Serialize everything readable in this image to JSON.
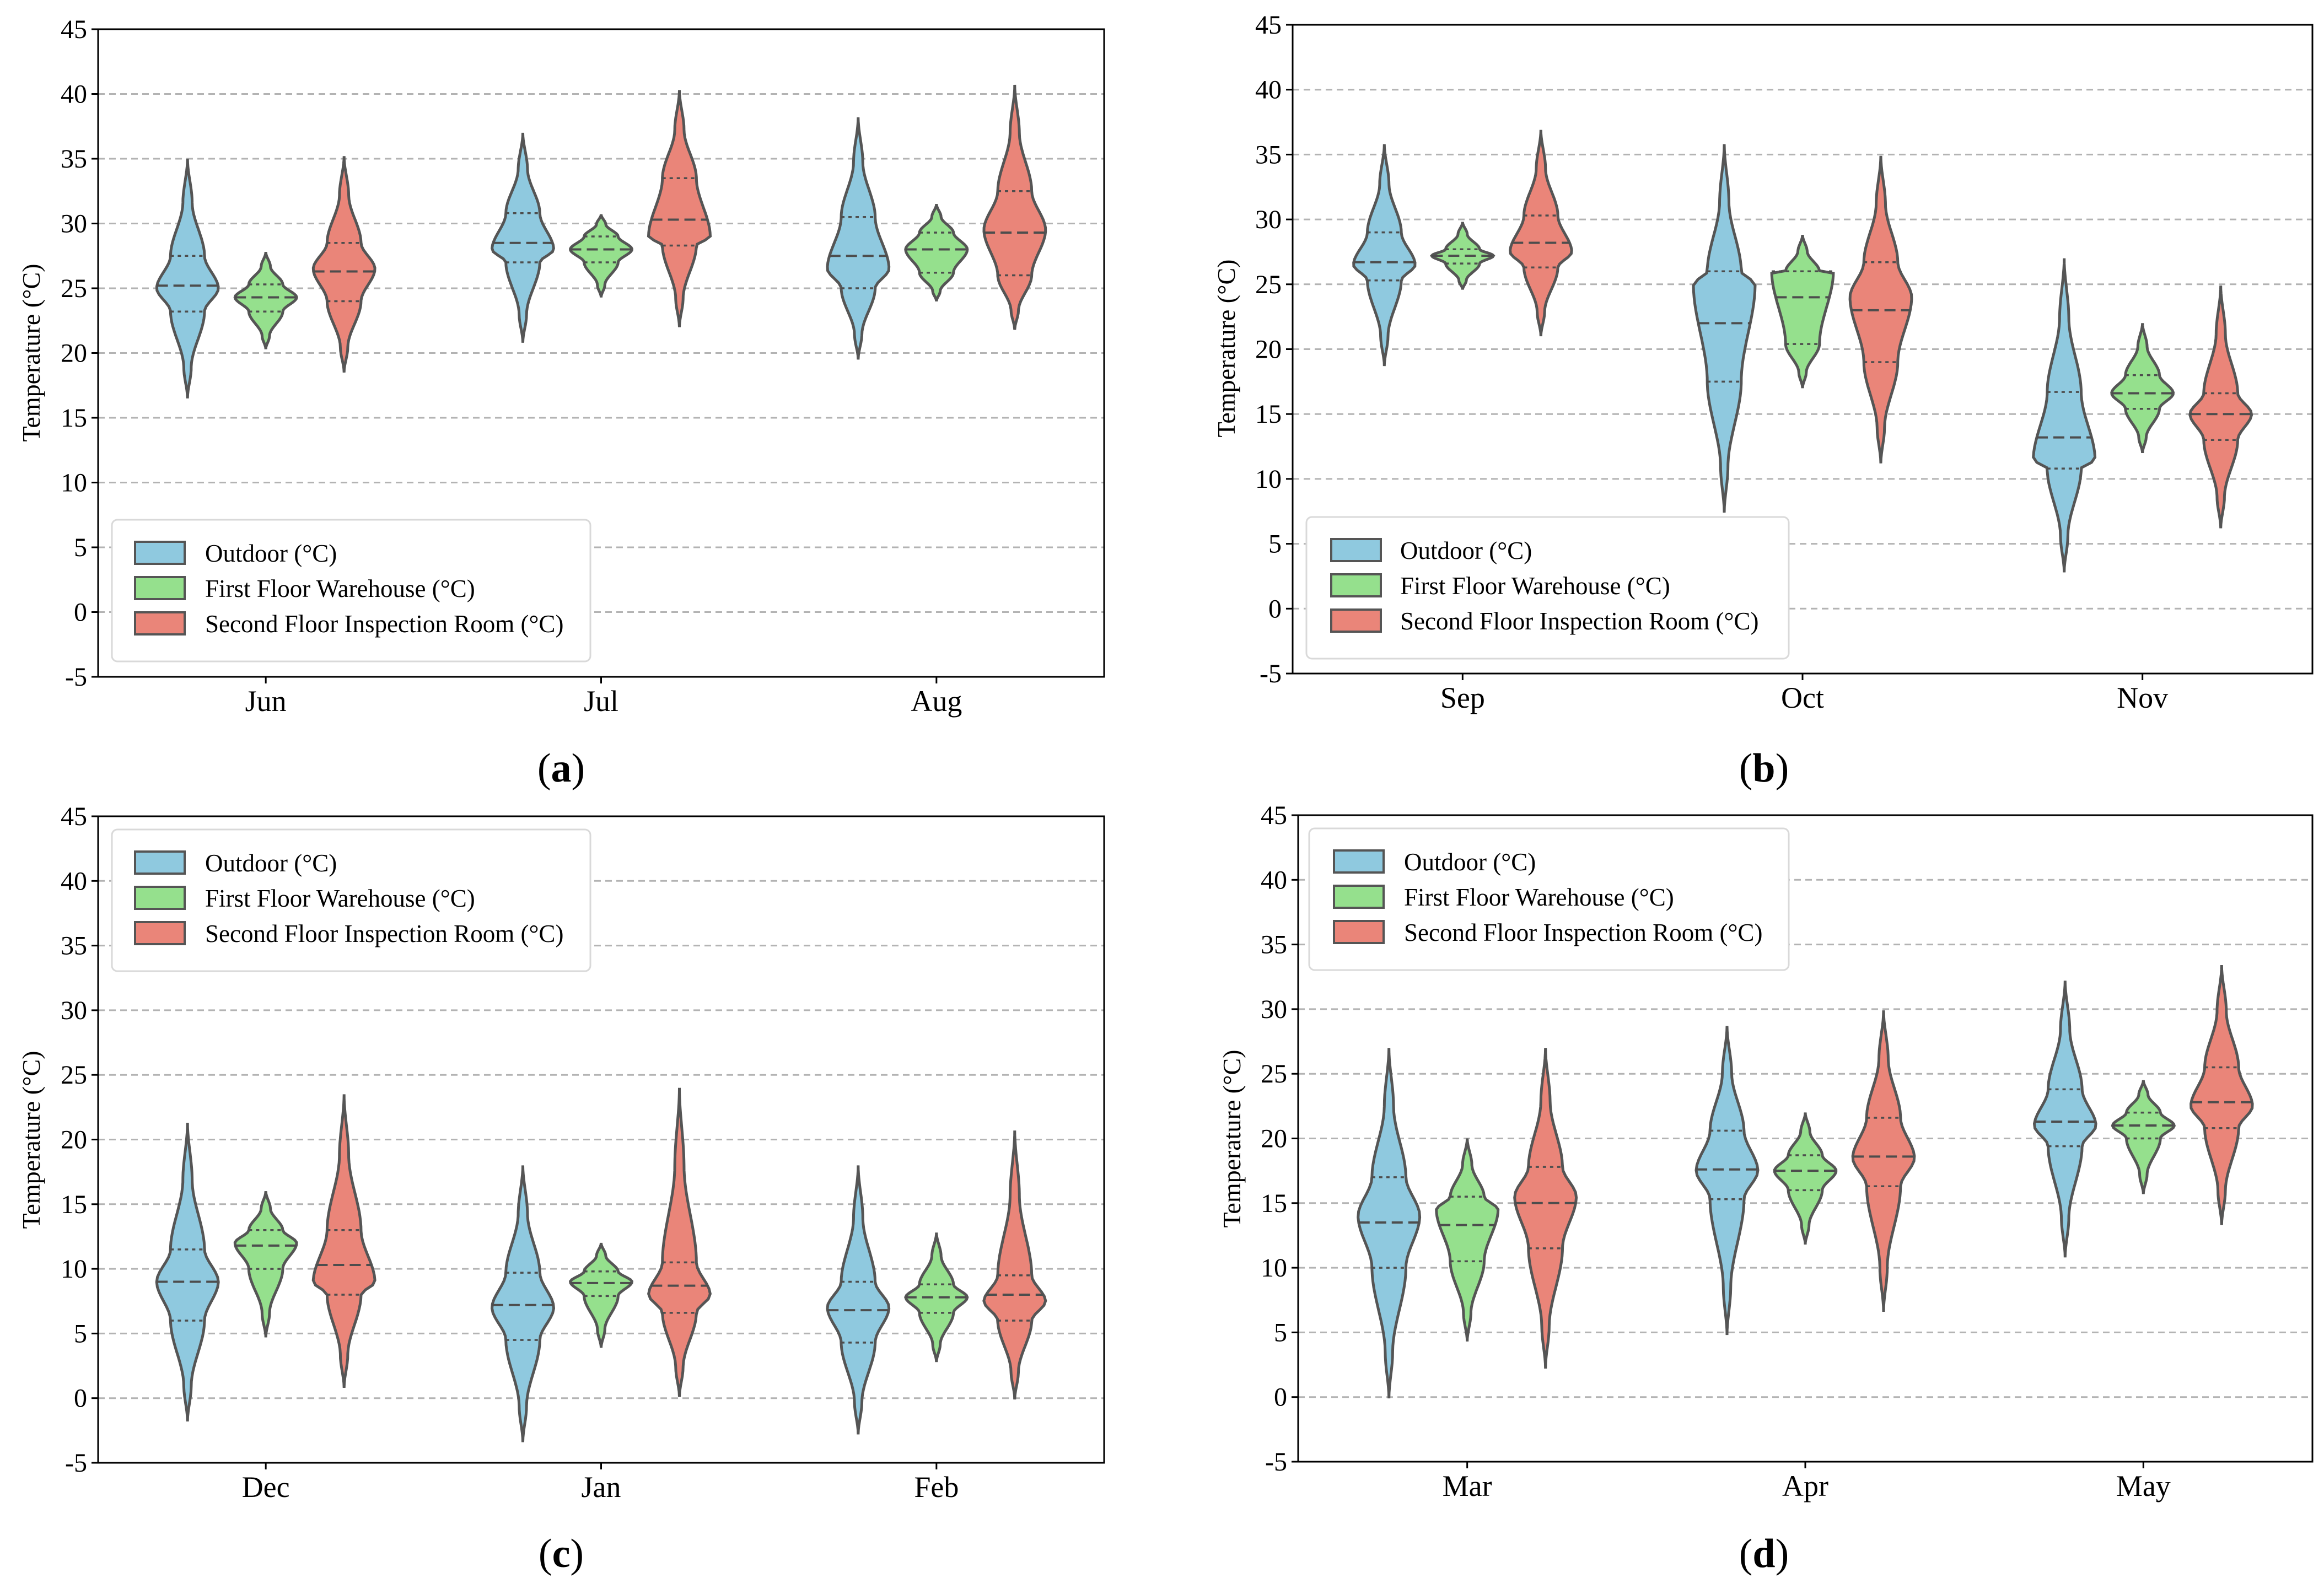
{
  "colors": {
    "outdoor": "#8fc9df",
    "first_floor": "#95e08d",
    "second_floor": "#ea8579",
    "violin_edge": "#555555",
    "grid": "#b3b3b3"
  },
  "chart_data": [
    {
      "type": "violin",
      "panel_label": "(a)",
      "panel_letter": "a",
      "ylabel": "Temperature (°C)",
      "ylim": [
        -5,
        45
      ],
      "yticks": [
        "-5",
        "0",
        "5",
        "10",
        "15",
        "20",
        "25",
        "30",
        "35",
        "40",
        "45"
      ],
      "grid": "horizontal dashed",
      "legend_loc": "lower left",
      "legend": [
        "Outdoor (°C)",
        "First Floor Warehouse (°C)",
        "Second Floor Inspection Room (°C)"
      ],
      "categories": [
        "Jun",
        "Jul",
        "Aug"
      ],
      "series": [
        {
          "name": "Outdoor (°C)",
          "values": [
            {
              "min": 16.5,
              "q1": 23.2,
              "median": 25.2,
              "q3": 27.5,
              "max": 35.0,
              "mode": 25.0
            },
            {
              "min": 20.8,
              "q1": 27.0,
              "median": 28.5,
              "q3": 30.8,
              "max": 37.0,
              "mode": 28.0
            },
            {
              "min": 19.5,
              "q1": 25.0,
              "median": 27.5,
              "q3": 30.5,
              "max": 38.2,
              "mode": 26.5
            }
          ]
        },
        {
          "name": "First Floor Warehouse (°C)",
          "values": [
            {
              "min": 20.3,
              "q1": 23.2,
              "median": 24.3,
              "q3": 25.3,
              "max": 27.8,
              "mode": 24.3
            },
            {
              "min": 24.3,
              "q1": 27.0,
              "median": 28.0,
              "q3": 29.0,
              "max": 30.7,
              "mode": 28.0
            },
            {
              "min": 24.0,
              "q1": 26.2,
              "median": 28.0,
              "q3": 29.3,
              "max": 31.5,
              "mode": 28.0
            }
          ]
        },
        {
          "name": "Second Floor Inspection Room (°C)",
          "values": [
            {
              "min": 18.5,
              "q1": 24.0,
              "median": 26.3,
              "q3": 28.5,
              "max": 35.2,
              "mode": 26.5
            },
            {
              "min": 22.0,
              "q1": 28.3,
              "median": 30.3,
              "q3": 33.5,
              "max": 40.3,
              "mode": 29.0
            },
            {
              "min": 21.8,
              "q1": 26.0,
              "median": 29.3,
              "q3": 32.5,
              "max": 40.7,
              "mode": 29.5
            }
          ]
        }
      ]
    },
    {
      "type": "violin",
      "panel_label": "(b)",
      "panel_letter": "b",
      "ylabel": "Temperature (°C)",
      "ylim": [
        -5,
        45
      ],
      "yticks": [
        "-5",
        "0",
        "5",
        "10",
        "15",
        "20",
        "25",
        "30",
        "35",
        "40",
        "45"
      ],
      "grid": "horizontal dashed",
      "legend_loc": "lower left",
      "legend": [
        "Outdoor (°C)",
        "First Floor Warehouse (°C)",
        "Second Floor Inspection Room (°C)"
      ],
      "categories": [
        "Sep",
        "Oct",
        "Nov"
      ],
      "series": [
        {
          "name": "Outdoor (°C)",
          "values": [
            {
              "min": 18.7,
              "q1": 25.3,
              "median": 26.7,
              "q3": 29.0,
              "max": 35.8,
              "mode": 26.5
            },
            {
              "min": 7.4,
              "q1": 17.5,
              "median": 22.0,
              "q3": 26.0,
              "max": 35.8,
              "mode": 25.0
            },
            {
              "min": 2.8,
              "q1": 10.8,
              "median": 13.2,
              "q3": 16.7,
              "max": 27.0,
              "mode": 11.5
            }
          ]
        },
        {
          "name": "First Floor Warehouse (°C)",
          "values": [
            {
              "min": 24.6,
              "q1": 26.6,
              "median": 27.2,
              "q3": 27.7,
              "max": 29.8,
              "mode": 27.2
            },
            {
              "min": 17.0,
              "q1": 20.4,
              "median": 24.0,
              "q3": 26.0,
              "max": 28.8,
              "mode": 26.0
            },
            {
              "min": 12.0,
              "q1": 15.4,
              "median": 16.6,
              "q3": 18.0,
              "max": 22.0,
              "mode": 16.6
            }
          ]
        },
        {
          "name": "Second Floor Inspection Room (°C)",
          "values": [
            {
              "min": 21.0,
              "q1": 26.3,
              "median": 28.2,
              "q3": 30.3,
              "max": 36.9,
              "mode": 27.5
            },
            {
              "min": 11.2,
              "q1": 19.0,
              "median": 23.0,
              "q3": 26.7,
              "max": 34.9,
              "mode": 24.0
            },
            {
              "min": 6.2,
              "q1": 13.0,
              "median": 15.0,
              "q3": 16.6,
              "max": 24.9,
              "mode": 15.0
            }
          ]
        }
      ]
    },
    {
      "type": "violin",
      "panel_label": "(c)",
      "panel_letter": "c",
      "ylabel": "Temperature (°C)",
      "ylim": [
        -5,
        45
      ],
      "yticks": [
        "-5",
        "0",
        "5",
        "10",
        "15",
        "20",
        "25",
        "30",
        "35",
        "40",
        "45"
      ],
      "grid": "horizontal dashed",
      "legend_loc": "upper left",
      "legend": [
        "Outdoor (°C)",
        "First Floor Warehouse (°C)",
        "Second Floor Inspection Room (°C)"
      ],
      "categories": [
        "Dec",
        "Jan",
        "Feb"
      ],
      "series": [
        {
          "name": "Outdoor (°C)",
          "values": [
            {
              "min": -1.8,
              "q1": 6.0,
              "median": 9.0,
              "q3": 11.5,
              "max": 21.3,
              "mode": 9.0
            },
            {
              "min": -3.4,
              "q1": 4.5,
              "median": 7.2,
              "q3": 9.7,
              "max": 18.0,
              "mode": 7.0
            },
            {
              "min": -2.8,
              "q1": 4.3,
              "median": 6.8,
              "q3": 9.0,
              "max": 18.0,
              "mode": 7.0
            }
          ]
        },
        {
          "name": "First Floor Warehouse (°C)",
          "values": [
            {
              "min": 4.7,
              "q1": 10.0,
              "median": 11.8,
              "q3": 13.0,
              "max": 16.0,
              "mode": 12.0
            },
            {
              "min": 3.9,
              "q1": 7.9,
              "median": 8.9,
              "q3": 9.8,
              "max": 12.0,
              "mode": 9.0
            },
            {
              "min": 2.8,
              "q1": 6.6,
              "median": 7.8,
              "q3": 8.8,
              "max": 12.8,
              "mode": 7.8
            }
          ]
        },
        {
          "name": "Second Floor Inspection Room (°C)",
          "values": [
            {
              "min": 0.8,
              "q1": 8.0,
              "median": 10.3,
              "q3": 13.0,
              "max": 23.5,
              "mode": 9.0
            },
            {
              "min": 0.1,
              "q1": 6.6,
              "median": 8.7,
              "q3": 10.5,
              "max": 24.0,
              "mode": 8.0
            },
            {
              "min": -0.1,
              "q1": 6.0,
              "median": 8.0,
              "q3": 9.5,
              "max": 20.7,
              "mode": 7.5
            }
          ]
        }
      ]
    },
    {
      "type": "violin",
      "panel_label": "(d)",
      "panel_letter": "d",
      "ylabel": "Temperature (°C)",
      "ylim": [
        -5,
        45
      ],
      "yticks": [
        "-5",
        "0",
        "5",
        "10",
        "15",
        "20",
        "25",
        "30",
        "35",
        "40",
        "45"
      ],
      "grid": "horizontal dashed",
      "legend_loc": "upper left",
      "legend": [
        "Outdoor (°C)",
        "First Floor Warehouse (°C)",
        "Second Floor Inspection Room (°C)"
      ],
      "categories": [
        "Mar",
        "Apr",
        "May"
      ],
      "series": [
        {
          "name": "Outdoor (°C)",
          "values": [
            {
              "min": -0.1,
              "q1": 10.0,
              "median": 13.5,
              "q3": 17.0,
              "max": 27.0,
              "mode": 14.0
            },
            {
              "min": 4.8,
              "q1": 15.3,
              "median": 17.6,
              "q3": 20.6,
              "max": 28.7,
              "mode": 17.5
            },
            {
              "min": 10.8,
              "q1": 19.4,
              "median": 21.3,
              "q3": 23.8,
              "max": 32.2,
              "mode": 21.0
            }
          ]
        },
        {
          "name": "First Floor Warehouse (°C)",
          "values": [
            {
              "min": 4.3,
              "q1": 10.5,
              "median": 13.3,
              "q3": 15.5,
              "max": 20.0,
              "mode": 14.5
            },
            {
              "min": 11.8,
              "q1": 16.0,
              "median": 17.5,
              "q3": 18.7,
              "max": 22.0,
              "mode": 17.5
            },
            {
              "min": 15.7,
              "q1": 20.0,
              "median": 21.0,
              "q3": 22.0,
              "max": 24.5,
              "mode": 21.0
            }
          ]
        },
        {
          "name": "Second Floor Inspection Room (°C)",
          "values": [
            {
              "min": 2.2,
              "q1": 11.5,
              "median": 15.0,
              "q3": 17.8,
              "max": 27.0,
              "mode": 15.5
            },
            {
              "min": 6.6,
              "q1": 16.3,
              "median": 18.6,
              "q3": 21.6,
              "max": 29.9,
              "mode": 18.5
            },
            {
              "min": 13.3,
              "q1": 20.8,
              "median": 22.8,
              "q3": 25.5,
              "max": 33.4,
              "mode": 22.5
            }
          ]
        }
      ]
    }
  ]
}
